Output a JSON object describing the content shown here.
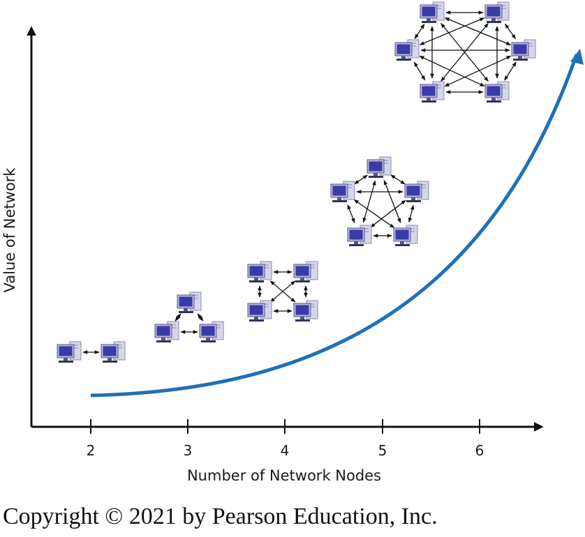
{
  "axes": {
    "y_label": "Value of Network",
    "x_label": "Number of Network Nodes",
    "x_ticks": [
      "2",
      "3",
      "4",
      "5",
      "6"
    ]
  },
  "networks": [
    {
      "nodes": 2,
      "topology": "fully-connected"
    },
    {
      "nodes": 3,
      "topology": "fully-connected"
    },
    {
      "nodes": 4,
      "topology": "fully-connected"
    },
    {
      "nodes": 5,
      "topology": "fully-connected"
    },
    {
      "nodes": 6,
      "topology": "fully-connected"
    }
  ],
  "icons": {
    "node": "computer-icon"
  },
  "colors": {
    "curve": "#1f6fb8",
    "axis": "#111111",
    "screen": "#3a3aa8",
    "monitor_frame": "#b8b8d8",
    "tower": "#d6d6ea",
    "link": "#111111"
  },
  "footer": {
    "copyright": "Copyright © 2021 by Pearson Education, Inc."
  }
}
